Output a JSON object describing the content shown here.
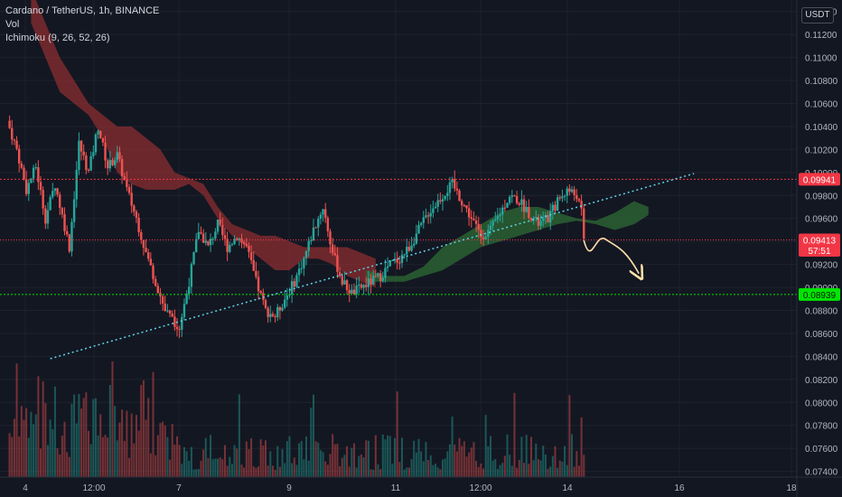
{
  "header": {
    "symbol": "Cardano / TetherUS, 1h, BINANCE",
    "volume_label": "Vol",
    "indicator_label": "Ichimoku (9, 26, 52, 26)"
  },
  "price_scale": {
    "currency": "USDT",
    "ticks": [
      "0.11400",
      "0.11200",
      "0.11000",
      "0.10800",
      "0.10600",
      "0.10400",
      "0.10200",
      "0.10000",
      "0.09800",
      "0.09600",
      "0.09400",
      "0.09200",
      "0.09000",
      "0.08800",
      "0.08600",
      "0.08400",
      "0.08200",
      "0.08000",
      "0.07800",
      "0.07600",
      "0.07400"
    ]
  },
  "time_scale": {
    "ticks": [
      "4",
      "12:00",
      "7",
      "9",
      "11",
      "12:00",
      "14",
      "16",
      "18"
    ]
  },
  "price_labels": [
    {
      "name": "resistance-label",
      "text": "0.09941",
      "price": 0.09941,
      "color": "#f23645"
    },
    {
      "name": "last-price-label",
      "text": "0.09413",
      "price": 0.09413,
      "color": "#f23645"
    },
    {
      "name": "countdown-label",
      "text": "57:51",
      "price": 0.09323,
      "color": "#f23645"
    },
    {
      "name": "support-label",
      "text": "0.08939",
      "price": 0.08939,
      "color": "#00e600"
    }
  ],
  "levels": [
    {
      "name": "resistance-line",
      "price": 0.09941,
      "color": "#f23645"
    },
    {
      "name": "last-price-line",
      "price": 0.09413,
      "color": "#f23645"
    },
    {
      "name": "support-line",
      "price": 0.08939,
      "color": "#00e600"
    }
  ],
  "colors": {
    "background": "#131722",
    "up": "#26a69a",
    "down": "#ef5350",
    "cloud_bear": "#8b2e30",
    "cloud_bull": "#2e6b34",
    "trendline": "#5fd3e6",
    "projection": "#ffe0a8"
  },
  "chart_data": {
    "type": "candlestick",
    "symbol": "Cardano / TetherUS",
    "interval": "1h",
    "exchange": "BINANCE",
    "ylim": [
      0.0735,
      0.115
    ],
    "price_path": [
      [
        0,
        0.1045
      ],
      [
        4,
        0.102
      ],
      [
        8,
        0.0985
      ],
      [
        12,
        0.1005
      ],
      [
        16,
        0.096
      ],
      [
        20,
        0.099
      ],
      [
        26,
        0.0935
      ],
      [
        30,
        0.1025
      ],
      [
        34,
        0.1
      ],
      [
        38,
        0.104
      ],
      [
        42,
        0.1005
      ],
      [
        46,
        0.1015
      ],
      [
        50,
        0.0985
      ],
      [
        54,
        0.096
      ],
      [
        58,
        0.093
      ],
      [
        62,
        0.0905
      ],
      [
        66,
        0.088
      ],
      [
        70,
        0.087
      ],
      [
        72,
        0.0865
      ],
      [
        76,
        0.0905
      ],
      [
        80,
        0.095
      ],
      [
        84,
        0.0935
      ],
      [
        88,
        0.0955
      ],
      [
        92,
        0.0935
      ],
      [
        96,
        0.0945
      ],
      [
        100,
        0.0935
      ],
      [
        104,
        0.0905
      ],
      [
        108,
        0.088
      ],
      [
        112,
        0.0875
      ],
      [
        116,
        0.089
      ],
      [
        120,
        0.0905
      ],
      [
        124,
        0.0925
      ],
      [
        128,
        0.095
      ],
      [
        132,
        0.097
      ],
      [
        136,
        0.093
      ],
      [
        140,
        0.0905
      ],
      [
        144,
        0.0895
      ],
      [
        148,
        0.09
      ],
      [
        152,
        0.0905
      ],
      [
        156,
        0.091
      ],
      [
        160,
        0.092
      ],
      [
        164,
        0.0925
      ],
      [
        168,
        0.0935
      ],
      [
        172,
        0.095
      ],
      [
        176,
        0.0965
      ],
      [
        180,
        0.0975
      ],
      [
        184,
        0.0985
      ],
      [
        186,
        0.099
      ],
      [
        190,
        0.0975
      ],
      [
        194,
        0.096
      ],
      [
        198,
        0.0945
      ],
      [
        202,
        0.095
      ],
      [
        206,
        0.0965
      ],
      [
        210,
        0.098
      ],
      [
        214,
        0.0975
      ],
      [
        218,
        0.0965
      ],
      [
        222,
        0.0955
      ],
      [
        226,
        0.096
      ],
      [
        230,
        0.0975
      ],
      [
        234,
        0.0985
      ],
      [
        238,
        0.098
      ],
      [
        240,
        0.0965
      ],
      [
        241,
        0.0941
      ]
    ],
    "cloud_bear": {
      "x": [
        10,
        16,
        22,
        28,
        34,
        40,
        46,
        52,
        58,
        64,
        70,
        76,
        82,
        88,
        94,
        100,
        106,
        112,
        118,
        124,
        130,
        136,
        142,
        148,
        154
      ],
      "upper": [
        0.116,
        0.113,
        0.11,
        0.108,
        0.106,
        0.105,
        0.104,
        0.104,
        0.103,
        0.102,
        0.1,
        0.0995,
        0.099,
        0.097,
        0.0955,
        0.095,
        0.0945,
        0.0945,
        0.094,
        0.0935,
        0.0935,
        0.0935,
        0.0935,
        0.093,
        0.0925
      ],
      "lower": [
        0.113,
        0.11,
        0.107,
        0.106,
        0.105,
        0.103,
        0.1,
        0.099,
        0.0985,
        0.0985,
        0.0985,
        0.099,
        0.098,
        0.096,
        0.0945,
        0.0935,
        0.0925,
        0.0915,
        0.0915,
        0.0925,
        0.0925,
        0.092,
        0.091,
        0.0905,
        0.09
      ]
    },
    "cloud_bull": {
      "x": [
        150,
        158,
        166,
        174,
        182,
        190,
        198,
        206,
        214,
        222,
        230,
        238,
        246,
        254,
        262,
        268
      ],
      "upper": [
        0.0915,
        0.091,
        0.091,
        0.0918,
        0.0935,
        0.0945,
        0.0955,
        0.0965,
        0.097,
        0.097,
        0.0965,
        0.096,
        0.0958,
        0.0965,
        0.0975,
        0.097
      ],
      "lower": [
        0.0905,
        0.0905,
        0.0905,
        0.091,
        0.0915,
        0.0925,
        0.0935,
        0.094,
        0.0945,
        0.095,
        0.0955,
        0.0958,
        0.0955,
        0.095,
        0.0955,
        0.0963
      ]
    },
    "trendline": [
      [
        18,
        0.0838
      ],
      [
        287,
        0.0999
      ]
    ],
    "projection": [
      [
        241,
        0.0941
      ],
      [
        244,
        0.0932
      ],
      [
        250,
        0.0942
      ],
      [
        256,
        0.0935
      ],
      [
        264,
        0.0912
      ]
    ],
    "xlim": [
      -3,
      330
    ],
    "volume_max": 1.0
  }
}
